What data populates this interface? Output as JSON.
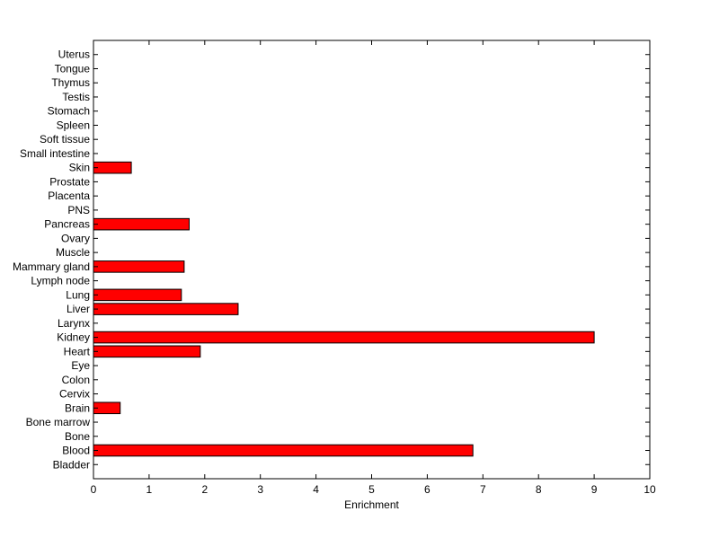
{
  "chart_data": {
    "type": "bar",
    "orientation": "horizontal",
    "title": "",
    "xlabel": "Enrichment",
    "ylabel": "",
    "xlim": [
      0,
      10
    ],
    "xticks": [
      0,
      1,
      2,
      3,
      4,
      5,
      6,
      7,
      8,
      9,
      10
    ],
    "grid": false,
    "legend": "none",
    "bar_color": "#ff0000",
    "edge_color": "#000000",
    "categories": [
      "Bladder",
      "Blood",
      "Bone",
      "Bone marrow",
      "Brain",
      "Cervix",
      "Colon",
      "Eye",
      "Heart",
      "Kidney",
      "Larynx",
      "Liver",
      "Lung",
      "Lymph node",
      "Mammary gland",
      "Muscle",
      "Ovary",
      "Pancreas",
      "PNS",
      "Placenta",
      "Prostate",
      "Skin",
      "Small intestine",
      "Soft tissue",
      "Spleen",
      "Stomach",
      "Testis",
      "Thymus",
      "Tongue",
      "Uterus"
    ],
    "values": [
      0,
      6.82,
      0,
      0,
      0.48,
      0,
      0,
      0,
      1.92,
      9.0,
      0,
      2.6,
      1.58,
      0,
      1.63,
      0,
      0,
      1.72,
      0,
      0,
      0,
      0.68,
      0,
      0,
      0,
      0,
      0,
      0,
      0,
      0
    ]
  }
}
